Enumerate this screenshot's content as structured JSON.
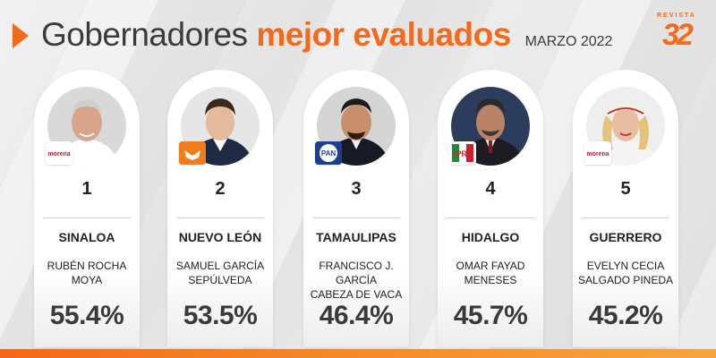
{
  "header": {
    "title_part1": "Gobernadores",
    "title_part2": "mejor evaluados",
    "date": "MARZO 2022",
    "logo_top": "REVISTA",
    "logo_num": "32"
  },
  "colors": {
    "accent": "#f26a1b",
    "text": "#222222"
  },
  "governors": [
    {
      "rank": "1",
      "state": "SINALOA",
      "name_line1": "RUBÉN ROCHA",
      "name_line2": "MOYA",
      "percent": "55.4%",
      "party": "morena",
      "party_label": "morena"
    },
    {
      "rank": "2",
      "state": "NUEVO LEÓN",
      "name_line1": "SAMUEL GARCÍA",
      "name_line2": "SEPÚLVEDA",
      "percent": "53.5%",
      "party": "mc",
      "party_label": ""
    },
    {
      "rank": "3",
      "state": "TAMAULIPAS",
      "name_line1": "FRANCISCO J. GARCÍA",
      "name_line2": "CABEZA DE VACA",
      "percent": "46.4%",
      "party": "pan",
      "party_label": "PAN"
    },
    {
      "rank": "4",
      "state": "HIDALGO",
      "name_line1": "OMAR FAYAD",
      "name_line2": "MENESES",
      "percent": "45.7%",
      "party": "pri",
      "party_label": "PRI"
    },
    {
      "rank": "5",
      "state": "GUERRERO",
      "name_line1": "EVELYN CECIA",
      "name_line2": "SALGADO PINEDA",
      "percent": "45.2%",
      "party": "morena",
      "party_label": "morena"
    }
  ]
}
